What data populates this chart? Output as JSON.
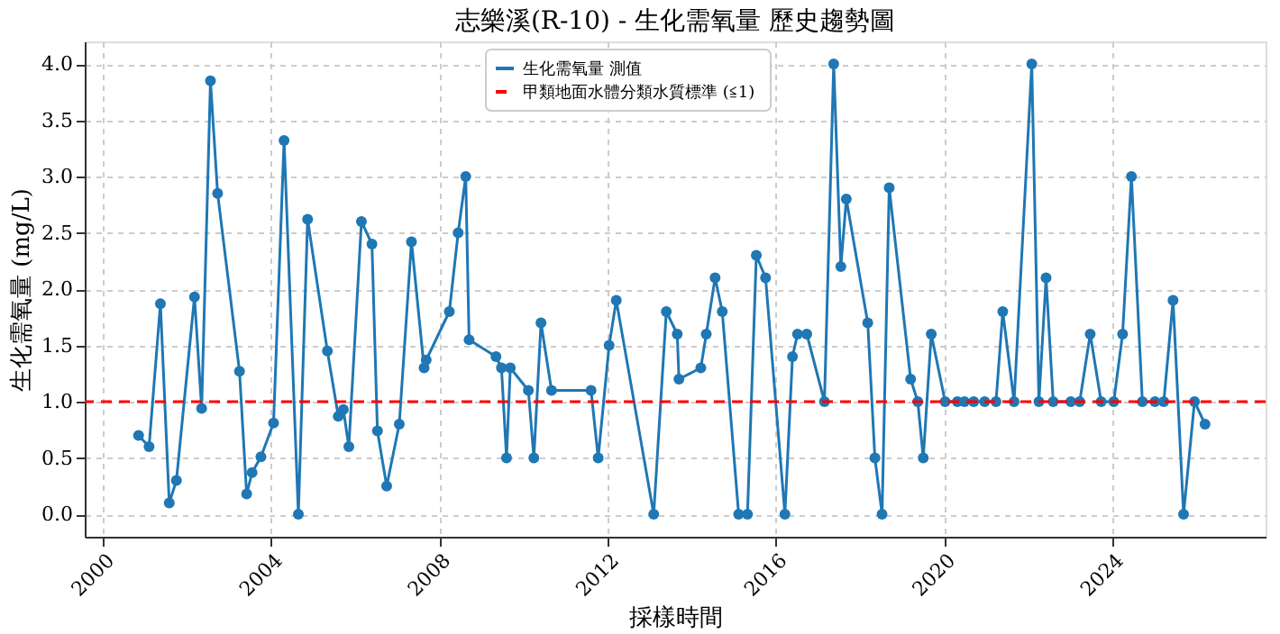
{
  "chart_data": {
    "type": "line",
    "title": "志樂溪(R-10) - 生化需氧量 歷史趨勢圖",
    "xlabel": "採樣時間",
    "ylabel": "生化需氧量 (mg/L)",
    "xlim": [
      1999.57,
      2027.65
    ],
    "xticks": [
      2000,
      2004,
      2008,
      2012,
      2016,
      2020,
      2024
    ],
    "ylim": [
      -0.2,
      4.2
    ],
    "yticks": [
      {
        "value": 0,
        "label": "0.0"
      },
      0.5,
      {
        "value": 1,
        "label": "1.0"
      },
      1.5,
      {
        "value": 2,
        "label": "2.0"
      },
      2.5,
      {
        "value": 3,
        "label": "3.0"
      },
      3.5,
      {
        "value": 4,
        "label": "4.0"
      }
    ],
    "grid": true,
    "legend": "top",
    "marker": "circle",
    "line_style": "solid",
    "series": [
      {
        "name": "生化需氧量 測值",
        "color": "#1f77b4",
        "x": [
          2000.85,
          2001.1,
          2001.37,
          2001.58,
          2001.75,
          2002.18,
          2002.35,
          2002.56,
          2002.73,
          2003.25,
          2003.42,
          2003.55,
          2003.76,
          2004.06,
          2004.31,
          2004.65,
          2004.87,
          2005.34,
          2005.6,
          2005.72,
          2005.85,
          2006.15,
          2006.4,
          2006.53,
          2006.75,
          2007.05,
          2007.34,
          2007.64,
          2007.69,
          2008.24,
          2008.45,
          2008.63,
          2008.71,
          2009.35,
          2009.48,
          2009.6,
          2009.69,
          2010.12,
          2010.25,
          2010.42,
          2010.67,
          2011.61,
          2011.78,
          2012.04,
          2012.21,
          2013.1,
          2013.4,
          2013.66,
          2013.7,
          2014.22,
          2014.35,
          2014.56,
          2014.73,
          2015.12,
          2015.33,
          2015.54,
          2015.76,
          2016.22,
          2016.4,
          2016.52,
          2016.74,
          2017.16,
          2017.38,
          2017.55,
          2017.68,
          2018.19,
          2018.36,
          2018.53,
          2018.7,
          2019.21,
          2019.38,
          2019.51,
          2019.7,
          2020.03,
          2020.32,
          2020.49,
          2020.71,
          2020.97,
          2021.24,
          2021.4,
          2021.67,
          2022.09,
          2022.26,
          2022.43,
          2022.6,
          2023.02,
          2023.23,
          2023.48,
          2023.74,
          2024.04,
          2024.25,
          2024.46,
          2024.72,
          2025.02,
          2025.23,
          2025.45,
          2025.7,
          2025.96,
          2026.21
        ],
        "values": [
          0.7,
          0.6,
          1.87,
          0.1,
          0.3,
          1.93,
          0.94,
          3.85,
          2.85,
          1.27,
          0.18,
          0.37,
          0.51,
          0.81,
          3.32,
          0.0,
          2.62,
          1.45,
          0.87,
          0.93,
          0.6,
          2.6,
          2.4,
          0.74,
          0.25,
          0.8,
          2.42,
          1.3,
          1.37,
          1.8,
          2.5,
          3.0,
          1.55,
          1.4,
          1.3,
          0.5,
          1.3,
          1.1,
          0.5,
          1.7,
          1.1,
          1.1,
          0.5,
          1.5,
          1.9,
          0.0,
          1.8,
          1.6,
          1.2,
          1.3,
          1.6,
          2.1,
          1.8,
          0.0,
          0.0,
          2.3,
          2.1,
          0.0,
          1.4,
          1.6,
          1.6,
          1.0,
          4.0,
          2.2,
          2.8,
          1.7,
          0.5,
          0.0,
          2.9,
          1.2,
          1.0,
          0.5,
          1.6,
          1.0,
          1.0,
          1.0,
          1.0,
          1.0,
          1.0,
          1.8,
          1.0,
          4.0,
          1.0,
          2.1,
          1.0,
          1.0,
          1.0,
          1.6,
          1.0,
          1.0,
          1.6,
          3.0,
          1.0,
          1.0,
          1.0,
          1.9,
          0.0,
          1.0,
          0.8
        ]
      }
    ],
    "ref_lines": [
      {
        "axis": "y",
        "value": 1.0,
        "label": "甲類地面水體分類水質標準 (≦1)",
        "color": "#ff0000",
        "line_style": "dashed"
      }
    ]
  }
}
